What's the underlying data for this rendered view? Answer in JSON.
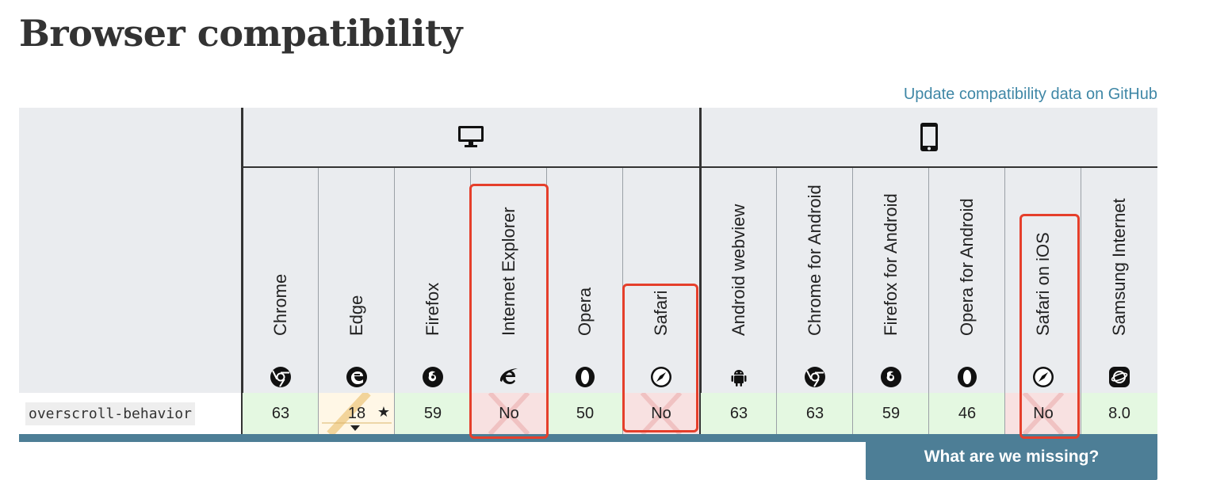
{
  "page": {
    "title": "Browser compatibility",
    "update_link": "Update compatibility data on GitHub",
    "missing_button": "What are we missing?"
  },
  "groups": {
    "desktop_icon": "desktop-icon",
    "mobile_icon": "mobile-icon"
  },
  "browsers": [
    {
      "name": "Chrome",
      "icon": "chrome-icon"
    },
    {
      "name": "Edge",
      "icon": "edge-icon"
    },
    {
      "name": "Firefox",
      "icon": "firefox-icon"
    },
    {
      "name": "Internet Explorer",
      "icon": "internet-explorer-icon"
    },
    {
      "name": "Opera",
      "icon": "opera-icon"
    },
    {
      "name": "Safari",
      "icon": "safari-icon"
    },
    {
      "name": "Android webview",
      "icon": "android-icon"
    },
    {
      "name": "Chrome for Android",
      "icon": "chrome-icon"
    },
    {
      "name": "Firefox for Android",
      "icon": "firefox-icon"
    },
    {
      "name": "Opera for Android",
      "icon": "opera-icon"
    },
    {
      "name": "Safari on iOS",
      "icon": "safari-icon"
    },
    {
      "name": "Samsung Internet",
      "icon": "samsung-internet-icon"
    }
  ],
  "feature": {
    "name": "overscroll-behavior",
    "support": [
      {
        "value": "63",
        "status": "yes"
      },
      {
        "value": "18",
        "status": "partial",
        "note": "★"
      },
      {
        "value": "59",
        "status": "yes"
      },
      {
        "value": "No",
        "status": "no"
      },
      {
        "value": "50",
        "status": "yes"
      },
      {
        "value": "No",
        "status": "no"
      },
      {
        "value": "63",
        "status": "yes"
      },
      {
        "value": "63",
        "status": "yes"
      },
      {
        "value": "59",
        "status": "yes"
      },
      {
        "value": "46",
        "status": "yes"
      },
      {
        "value": "No",
        "status": "no"
      },
      {
        "value": "8.0",
        "status": "yes"
      }
    ]
  },
  "colors": {
    "yes": "#e4f8e1",
    "no": "#f8e1e1",
    "partial": "#fff7e6",
    "link": "#3f87a6",
    "button": "#4d7e96",
    "highlight": "#e53f2b"
  }
}
